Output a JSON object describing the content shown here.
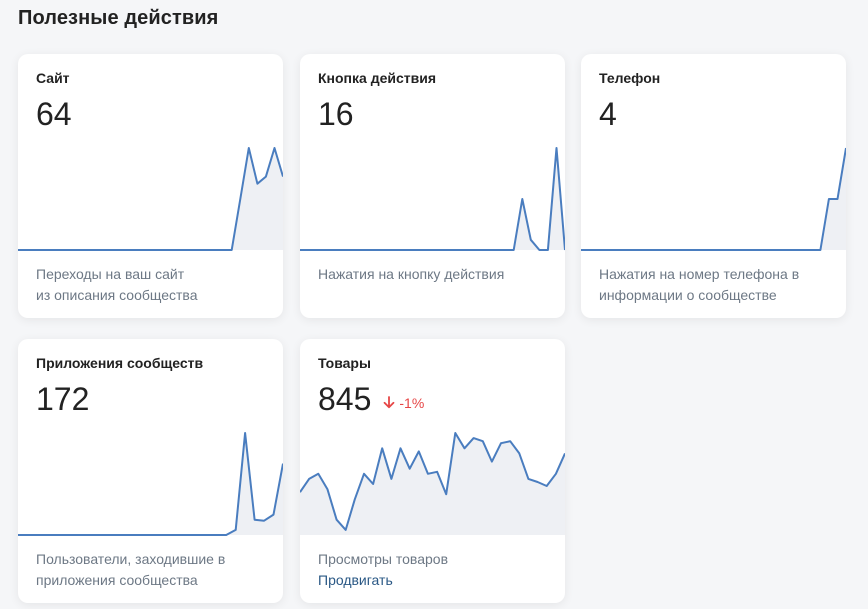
{
  "section": {
    "title": "Полезные действия"
  },
  "accent_color": "#4a7dbf",
  "fill_color": "#eef0f4",
  "cards": [
    {
      "title": "Сайт",
      "value": "64",
      "desc_lines": [
        "Переходы на ваш сайт",
        "из описания сообщества"
      ],
      "series": [
        0,
        0,
        0,
        0,
        0,
        0,
        0,
        0,
        0,
        0,
        0,
        0,
        0,
        0,
        0,
        0,
        0,
        0,
        0,
        0,
        0,
        0,
        0,
        0,
        0,
        0,
        0.5,
        1,
        0.65,
        0.72,
        1,
        0.72
      ]
    },
    {
      "title": "Кнопка действия",
      "value": "16",
      "desc_lines": [
        "Нажатия на кнопку действия"
      ],
      "series": [
        0,
        0,
        0,
        0,
        0,
        0,
        0,
        0,
        0,
        0,
        0,
        0,
        0,
        0,
        0,
        0,
        0,
        0,
        0,
        0,
        0,
        0,
        0,
        0,
        0,
        0,
        0.5,
        0.1,
        0,
        0,
        1,
        0
      ]
    },
    {
      "title": "Телефон",
      "value": "4",
      "desc_lines": [
        "Нажатия на номер телефона в",
        "информации о сообществе"
      ],
      "series": [
        0,
        0,
        0,
        0,
        0,
        0,
        0,
        0,
        0,
        0,
        0,
        0,
        0,
        0,
        0,
        0,
        0,
        0,
        0,
        0,
        0,
        0,
        0,
        0,
        0,
        0,
        0,
        0,
        0,
        0.5,
        0.5,
        1
      ]
    },
    {
      "title": "Приложения сообществ",
      "value": "172",
      "desc_lines": [
        "Пользователи, заходившие в",
        "приложения сообщества"
      ],
      "series": [
        0,
        0,
        0,
        0,
        0,
        0,
        0,
        0,
        0,
        0,
        0,
        0,
        0,
        0,
        0,
        0,
        0,
        0,
        0,
        0,
        0,
        0,
        0,
        0.05,
        1,
        0.15,
        0.14,
        0.2,
        0.7
      ]
    },
    {
      "title": "Товары",
      "value": "845",
      "trend": "-1%",
      "desc_lines": [
        "Просмотры товаров"
      ],
      "link": "Продвигать",
      "series": [
        0.42,
        0.55,
        0.6,
        0.45,
        0.15,
        0.05,
        0.35,
        0.6,
        0.5,
        0.85,
        0.55,
        0.85,
        0.65,
        0.82,
        0.6,
        0.62,
        0.4,
        1,
        0.85,
        0.95,
        0.92,
        0.72,
        0.9,
        0.92,
        0.8,
        0.55,
        0.52,
        0.48,
        0.6,
        0.8
      ]
    }
  ]
}
